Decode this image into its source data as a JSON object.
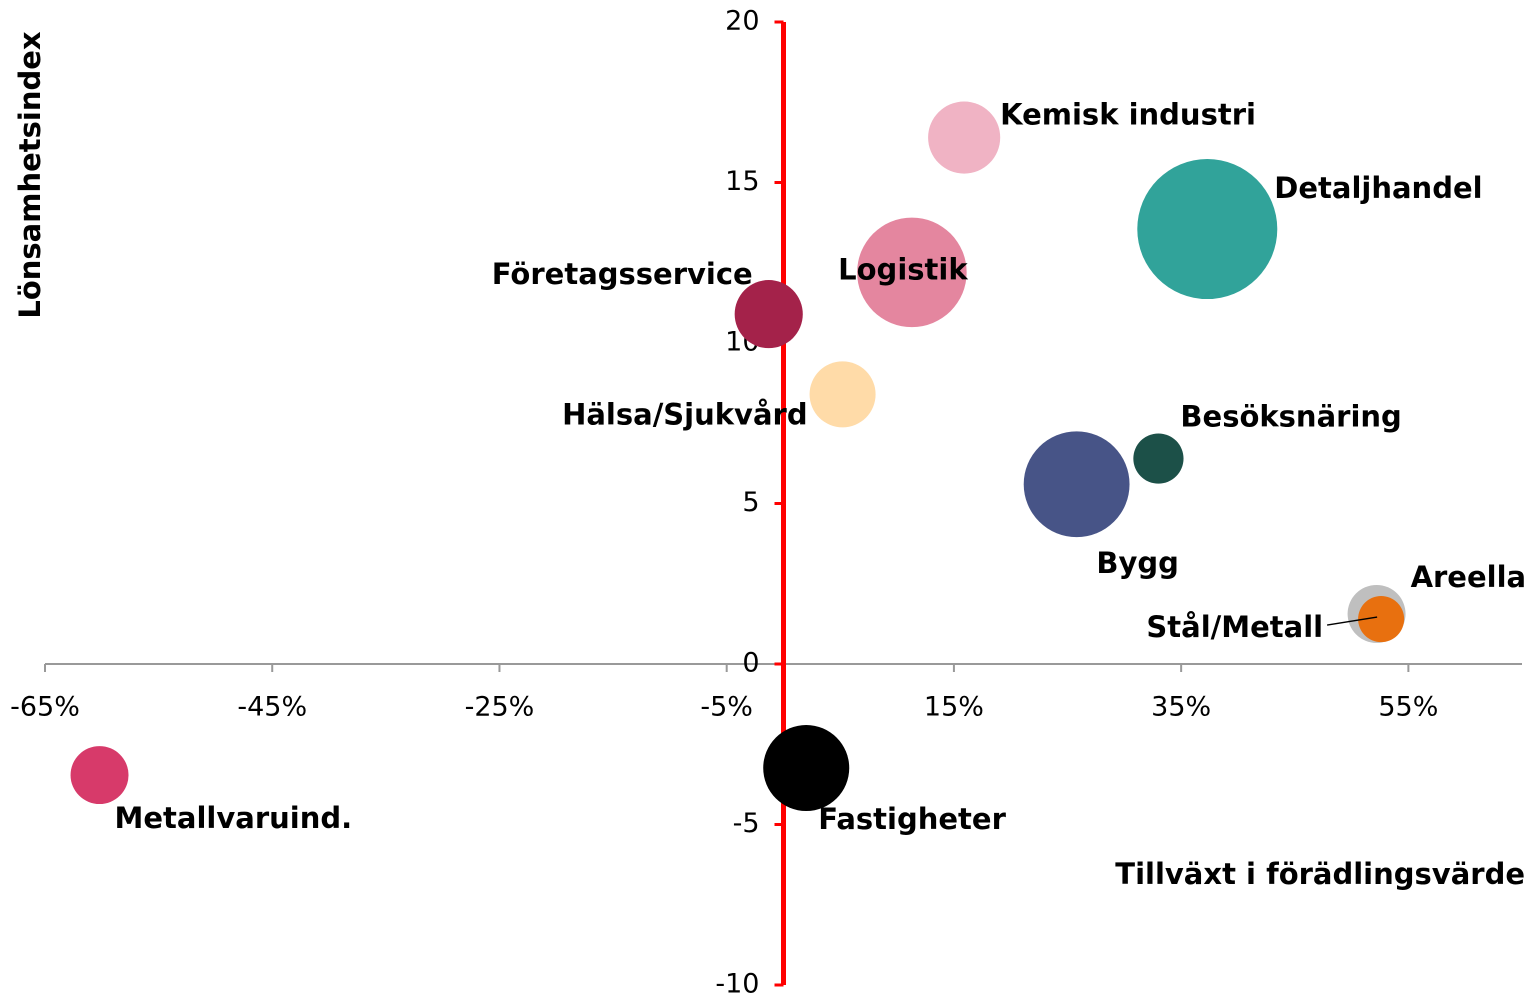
{
  "chart_data": {
    "type": "bubble",
    "x_label": "Tillväxt i förädlingsvärde",
    "y_label": "Lönsamhetsindex",
    "xlim": [
      -65,
      65
    ],
    "ylim": [
      -10,
      20
    ],
    "xticks": [
      {
        "value": -65,
        "label": "-65%"
      },
      {
        "value": -45,
        "label": "-45%"
      },
      {
        "value": -25,
        "label": "-25%"
      },
      {
        "value": -5,
        "label": "-5%"
      },
      {
        "value": 15,
        "label": "15%"
      },
      {
        "value": 35,
        "label": "35%"
      },
      {
        "value": 55,
        "label": "55%"
      }
    ],
    "yticks": [
      -10,
      -5,
      0,
      5,
      10,
      15,
      20
    ],
    "points": [
      {
        "name": "Kemisk industri",
        "x": 15.9,
        "y": 16.4,
        "size": 13,
        "color": "#f0b3c4"
      },
      {
        "name": "Detaljhandel",
        "x": 37.3,
        "y": 13.55,
        "size": 49,
        "color": "#31a39a"
      },
      {
        "name": "Logistik",
        "x": 11.3,
        "y": 12.2,
        "size": 30,
        "color": "#e4869f"
      },
      {
        "name": "Företagsservice",
        "x": -1.3,
        "y": 10.9,
        "size": 11.6,
        "color": "#a4224a"
      },
      {
        "name": "Hälsa/Sjukvård",
        "x": 5.2,
        "y": 8.4,
        "size": 10.9,
        "color": "#ffdba8"
      },
      {
        "name": "Besöksnäring",
        "x": 33,
        "y": 6.4,
        "size": 6.3,
        "color": "#1c5048"
      },
      {
        "name": "Bygg",
        "x": 25.8,
        "y": 5.6,
        "size": 28,
        "color": "#475487"
      },
      {
        "name": "Areella",
        "x": 52.2,
        "y": 1.56,
        "size": 8.4,
        "color": "#bfbfbf"
      },
      {
        "name": "Stål/Metall",
        "x": 52.6,
        "y": 1.4,
        "size": 5.3,
        "color": "#e8700f"
      },
      {
        "name": "Metallvaruind.",
        "x": -60.2,
        "y": -3.46,
        "size": 8.4,
        "color": "#d73a6a"
      },
      {
        "name": "Fastigheter",
        "x": 2,
        "y": -3.24,
        "size": 18.5,
        "color": "#000000"
      }
    ]
  }
}
